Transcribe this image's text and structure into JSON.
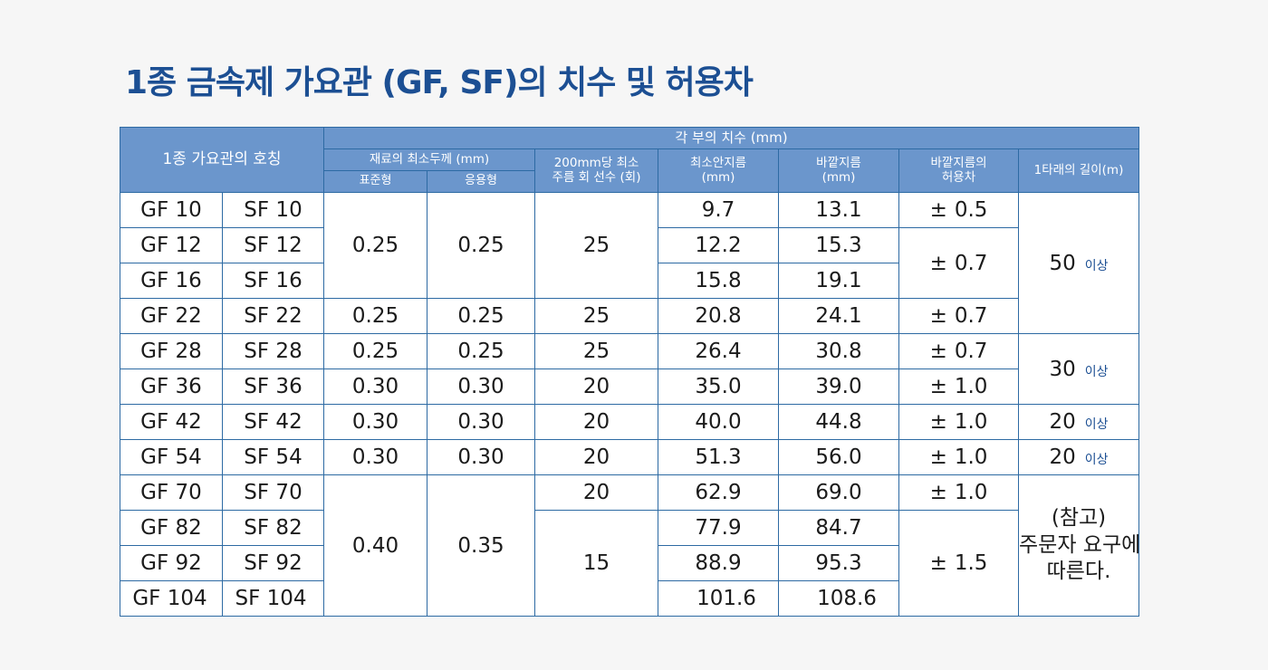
{
  "title": "1종 금속제 가요관 (GF, SF)의 치수 및 허용차",
  "header": {
    "name_col": "1종 가요관의 호칭",
    "dims_group": "각 부의 치수 (mm)",
    "min_thickness": "재료의 최소두께 (mm)",
    "standard": "표준형",
    "applied": "응용형",
    "min_turns_line1": "200mm당 최소",
    "min_turns_line2": "주름 회 선수 (회)",
    "inner_line1": "최소안지름",
    "inner_line2": "(mm)",
    "outer_line1": "바깥지름",
    "outer_line2": "(mm)",
    "tolerance_line1": "바깥지름의",
    "tolerance_line2": "허용차",
    "length": "1타래의 길이(m)"
  },
  "symbols": {
    "plus_minus": "±"
  },
  "rows": [
    {
      "gf": "GF 10",
      "sf": "SF 10",
      "inner": "9.7",
      "outer": "13.1"
    },
    {
      "gf": "GF 12",
      "sf": "SF 12",
      "inner": "12.2",
      "outer": "15.3"
    },
    {
      "gf": "GF 16",
      "sf": "SF 16",
      "inner": "15.8",
      "outer": "19.1"
    },
    {
      "gf": "GF 22",
      "sf": "SF 22",
      "inner": "20.8",
      "outer": "24.1"
    },
    {
      "gf": "GF 28",
      "sf": "SF 28",
      "inner": "26.4",
      "outer": "30.8"
    },
    {
      "gf": "GF 36",
      "sf": "SF 36",
      "inner": "35.0",
      "outer": "39.0"
    },
    {
      "gf": "GF 42",
      "sf": "SF 42",
      "inner": "40.0",
      "outer": "44.8"
    },
    {
      "gf": "GF 54",
      "sf": "SF 54",
      "inner": "51.3",
      "outer": "56.0"
    },
    {
      "gf": "GF 70",
      "sf": "SF 70",
      "inner": "62.9",
      "outer": "69.0"
    },
    {
      "gf": "GF 82",
      "sf": "SF 82",
      "inner": "77.9",
      "outer": "84.7"
    },
    {
      "gf": "GF 92",
      "sf": "SF 92",
      "inner": "88.9",
      "outer": "95.3"
    },
    {
      "gf": "GF 104",
      "sf": "SF 104",
      "inner": "101.6",
      "outer": "108.6"
    }
  ],
  "thickness": {
    "std_10_16": "0.25",
    "app_10_16": "0.25",
    "std_22": "0.25",
    "app_22": "0.25",
    "std_28": "0.25",
    "app_28": "0.25",
    "std_36": "0.30",
    "app_36": "0.30",
    "std_42": "0.30",
    "app_42": "0.30",
    "std_54": "0.30",
    "app_54": "0.30",
    "std_70_104": "0.40",
    "app_70_104": "0.35"
  },
  "turns": {
    "t_10_16": "25",
    "t_22": "25",
    "t_28": "25",
    "t_36": "20",
    "t_42": "20",
    "t_54": "20",
    "t_70": "20",
    "t_82_104": "15"
  },
  "tolerance": {
    "tol_10": "0.5",
    "tol_12_16": "0.7",
    "tol_22": "0.7",
    "tol_28": "0.7",
    "tol_36": "1.0",
    "tol_42": "1.0",
    "tol_54": "1.0",
    "tol_70": "1.0",
    "tol_82_104": "1.5"
  },
  "length": {
    "len_10_22": "50",
    "len_28_36": "30",
    "len_42": "20",
    "len_54": "20",
    "suffix": "이상",
    "note_line1": "(참고)",
    "note_line2": "주문자 요구에",
    "note_line3": "따른다."
  },
  "colors": {
    "title": "#1c4f93",
    "header_bg": "#6b96cc",
    "border": "#2d6aa3",
    "shaded_cell": "#c3d0dd"
  }
}
